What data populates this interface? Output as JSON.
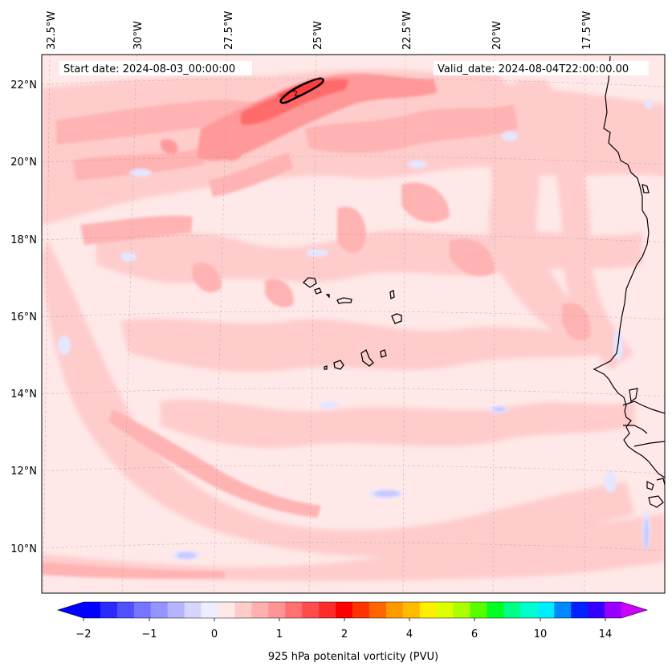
{
  "map": {
    "start_date_label": "Start date: 2024-08-03_00:00:00",
    "valid_date_label": "Valid_date: 2024-08-04T22:00:00.00",
    "contour_label": "2",
    "lon_labels": [
      "32.5°W",
      "30°W",
      "27.5°W",
      "25°W",
      "22.5°W",
      "20°W",
      "17.5°W"
    ],
    "lat_labels": [
      "22°N",
      "20°N",
      "18°N",
      "16°N",
      "14°N",
      "12°N",
      "10°N"
    ],
    "field": "925 hPa potential vorticity",
    "colors": {
      "background_field": "#ffe8e8",
      "light_pink": "#ffcccc",
      "medium_pink": "#ffb3b3",
      "salmon": "#ff9999",
      "red": "#ff4d4d",
      "deep_red": "#ff1a1a",
      "pale_blue": "#e6e6ff",
      "coast": "#000000"
    }
  },
  "colorbar": {
    "label": "925 hPa potenital vorticity (PVU)",
    "tick_labels": [
      "−2",
      "−1",
      "0",
      "1",
      "2",
      "4",
      "6",
      "10",
      "14"
    ],
    "colors": [
      "#0000ff",
      "#2a2aff",
      "#5050ff",
      "#7575ff",
      "#9595ff",
      "#b5b5ff",
      "#d5d5ff",
      "#eeeeff",
      "#ffe8e8",
      "#ffcccc",
      "#ffb0b0",
      "#ff9494",
      "#ff7070",
      "#ff4c4c",
      "#ff2a2a",
      "#ff0000",
      "#ff3300",
      "#ff6600",
      "#ff9900",
      "#ffbb00",
      "#ffee00",
      "#ddff00",
      "#aaff00",
      "#55ff00",
      "#00ff22",
      "#00ff88",
      "#00ffcc",
      "#00eeff",
      "#0088ff",
      "#0022ff",
      "#3300ff",
      "#9900ff"
    ],
    "under_color": "#0000ff",
    "over_color": "#cc00ff"
  }
}
